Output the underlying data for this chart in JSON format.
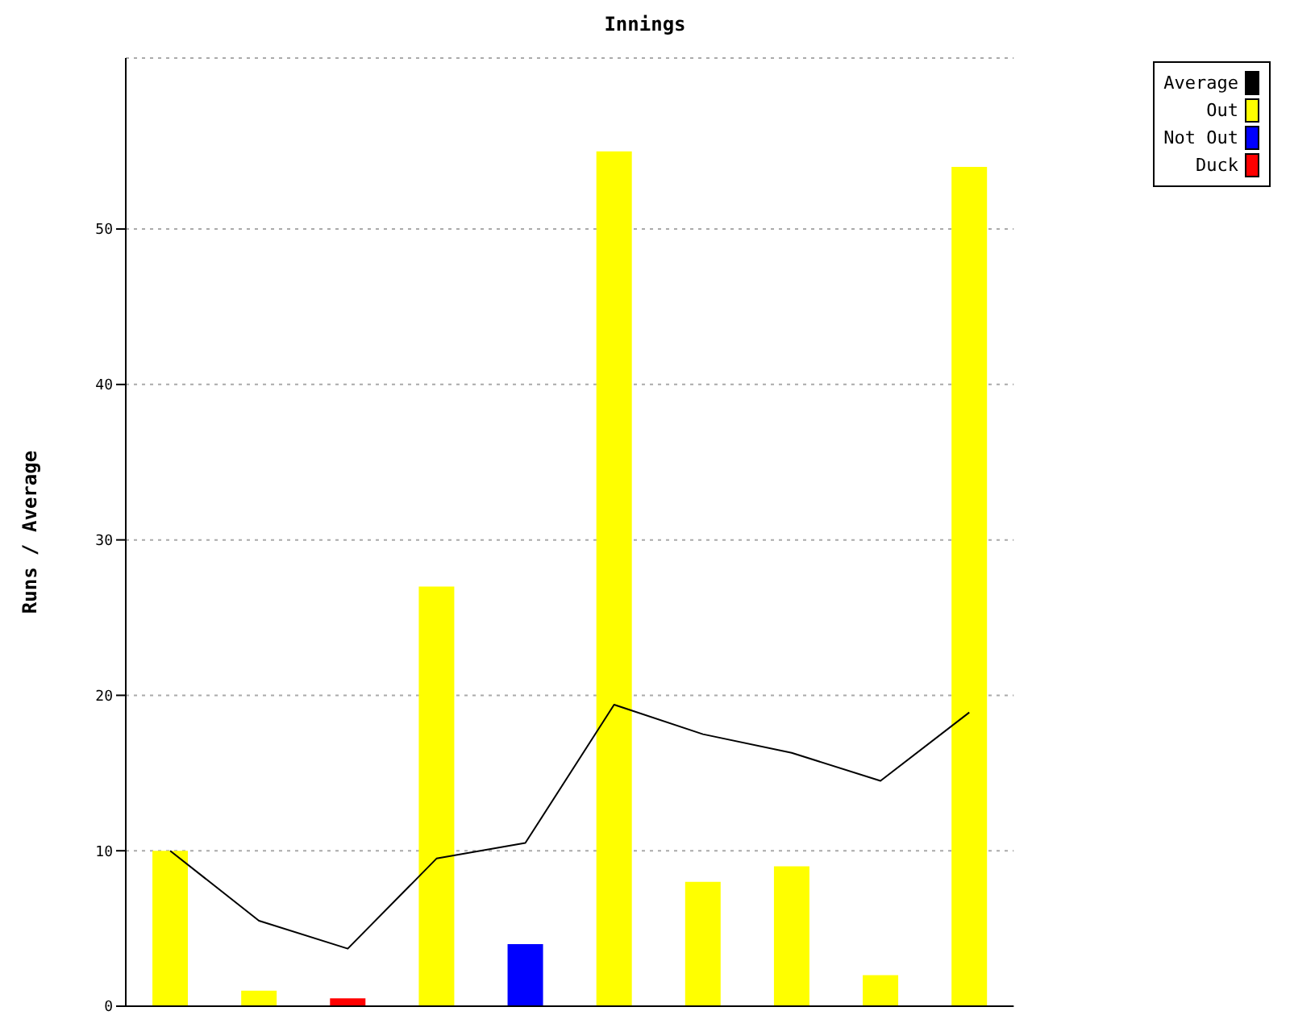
{
  "chart_data": {
    "type": "bar",
    "title": "Innings",
    "ylabel": "Runs / Average",
    "categories": [
      null,
      null,
      null,
      null,
      null,
      null,
      null,
      null,
      null,
      null
    ],
    "series": [
      {
        "name": "Average",
        "type": "line",
        "color": "#000000",
        "values": [
          10,
          5.5,
          3.7,
          9.5,
          10.5,
          19.4,
          17.5,
          16.3,
          14.5,
          18.9
        ]
      },
      {
        "name": "Out",
        "color": "#ffff00",
        "values": [
          10,
          1,
          null,
          27,
          null,
          55,
          8,
          9,
          2,
          54
        ]
      },
      {
        "name": "Not Out",
        "color": "#0000ff",
        "values": [
          null,
          null,
          null,
          null,
          4,
          null,
          null,
          null,
          null,
          null
        ]
      },
      {
        "name": "Duck",
        "color": "#ff0000",
        "values": [
          null,
          null,
          0.5,
          null,
          null,
          null,
          null,
          null,
          null,
          null
        ]
      }
    ],
    "stacked": true,
    "ylim": [
      0,
      61
    ],
    "yticks": [
      0,
      10,
      20,
      30,
      40,
      50
    ],
    "grid": "y",
    "legend": "top right",
    "tick_labels": "y",
    "marker": "none",
    "line_style": "solid"
  }
}
